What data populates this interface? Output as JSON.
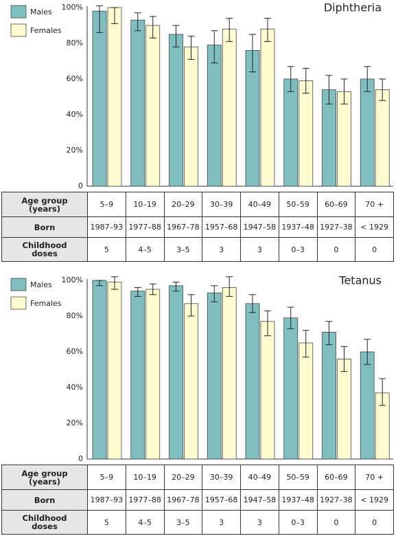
{
  "chart_data": [
    {
      "type": "bar",
      "title": "Diphtheria",
      "categories": [
        "5–9",
        "10–19",
        "20–29",
        "30–39",
        "40–49",
        "50–59",
        "60–69",
        "70 +"
      ],
      "series": [
        {
          "name": "Males",
          "color": "#7fbfbf",
          "values": [
            98,
            93,
            85,
            79,
            76,
            60,
            54,
            60
          ],
          "errors": [
            [
              12,
              3
            ],
            [
              6,
              4
            ],
            [
              7,
              5
            ],
            [
              10,
              8
            ],
            [
              12,
              9
            ],
            [
              7,
              7
            ],
            [
              8,
              8
            ],
            [
              7,
              7
            ]
          ]
        },
        {
          "name": "Females",
          "color": "#fdfbcf",
          "values": [
            100,
            90,
            78,
            88,
            88,
            59,
            53,
            54
          ],
          "errors": [
            [
              9,
              0
            ],
            [
              7,
              5
            ],
            [
              7,
              6
            ],
            [
              7,
              6
            ],
            [
              7,
              6
            ],
            [
              7,
              7
            ],
            [
              7,
              7
            ],
            [
              6,
              6
            ]
          ]
        }
      ],
      "ylim": [
        0,
        100
      ],
      "yticks": [
        0,
        {
          "value": 20,
          "label": "20%"
        },
        {
          "value": 40,
          "label": "40%"
        },
        {
          "value": 60,
          "label": "60%"
        },
        {
          "value": 80,
          "label": "80%"
        },
        {
          "value": 100,
          "label": "100%"
        }
      ],
      "legend": "upper left",
      "table": {
        "category_label": "Age group (years)",
        "rows": [
          {
            "label": "Born",
            "values": [
              "1987–93",
              "1977–88",
              "1967–78",
              "1957–68",
              "1947–58",
              "1937–48",
              "1927–38",
              "< 1929"
            ]
          },
          {
            "label": "Childhood doses",
            "values": [
              5,
              "4–5",
              "3–5",
              3,
              3,
              "0–3",
              0,
              0
            ]
          }
        ]
      }
    },
    {
      "type": "bar",
      "title": "Tetanus",
      "categories": [
        "5–9",
        "10–19",
        "20–29",
        "30–39",
        "40–49",
        "50–59",
        "60–69",
        "70 +"
      ],
      "series": [
        {
          "name": "Males",
          "color": "#7fbfbf",
          "values": [
            100,
            94,
            97,
            93,
            87,
            79,
            71,
            60
          ],
          "errors": [
            [
              3,
              0
            ],
            [
              3,
              2
            ],
            [
              3,
              2
            ],
            [
              5,
              4
            ],
            [
              5,
              5
            ],
            [
              6,
              6
            ],
            [
              7,
              6
            ],
            [
              7,
              7
            ]
          ]
        },
        {
          "name": "Females",
          "color": "#fdfbcf",
          "values": [
            99,
            95,
            87,
            96,
            77,
            65,
            56,
            37
          ],
          "errors": [
            [
              4,
              3
            ],
            [
              3,
              3
            ],
            [
              7,
              5
            ],
            [
              5,
              6
            ],
            [
              8,
              6
            ],
            [
              8,
              7
            ],
            [
              7,
              7
            ],
            [
              7,
              8
            ]
          ]
        }
      ],
      "ylim": [
        0,
        100
      ],
      "yticks": [
        0,
        {
          "value": 20,
          "label": "20%"
        },
        {
          "value": 40,
          "label": "40%"
        },
        {
          "value": 60,
          "label": "60%"
        },
        {
          "value": 80,
          "label": "80%"
        },
        {
          "value": 100,
          "label": "100%"
        }
      ],
      "legend": "upper left",
      "table": {
        "category_label": "Age group (years)",
        "rows": [
          {
            "label": "Born",
            "values": [
              "1987–93",
              "1977–88",
              "1967–78",
              "1957–68",
              "1947–58",
              "1937–48",
              "1927–38",
              "< 1929"
            ]
          },
          {
            "label": "Childhood doses",
            "values": [
              5,
              "4–5",
              "3–5",
              3,
              3,
              "0–3",
              0,
              0
            ]
          }
        ]
      }
    }
  ]
}
